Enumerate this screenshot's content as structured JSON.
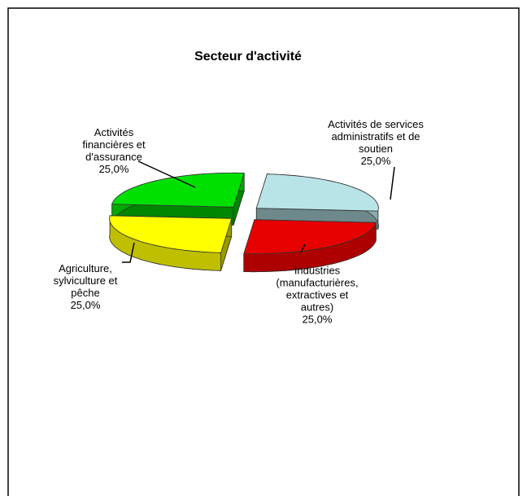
{
  "chart_data": {
    "type": "pie",
    "title": "Secteur d'activité",
    "categories": [
      "Activités de services administratifs et de soutien",
      "Industries (manufacturières, extractives et autres)",
      "Agriculture, sylviculture et pêche",
      "Activités financières et d'assurance"
    ],
    "values": [
      25,
      25,
      25,
      25
    ],
    "value_labels": [
      "25,0%",
      "25,0%",
      "25,0%",
      "25,0%"
    ],
    "colors": [
      "#b8e4e8",
      "#e60000",
      "#ffff00",
      "#00e000"
    ]
  }
}
